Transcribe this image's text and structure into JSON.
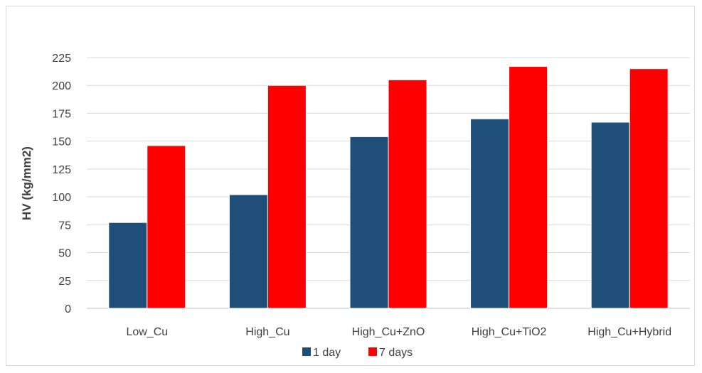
{
  "chart_data": {
    "type": "bar",
    "categories": [
      "Low_Cu",
      "High_Cu",
      "High_Cu+ZnO",
      "High_Cu+TiO2",
      "High_Cu+Hybrid"
    ],
    "series": [
      {
        "name": "1 day",
        "color": "#1f4e79",
        "values": [
          77,
          102,
          154,
          170,
          167
        ]
      },
      {
        "name": "7 days",
        "color": "#ff0000",
        "values": [
          146,
          200,
          205,
          217,
          215
        ]
      }
    ],
    "ylabel": "HV (kg/mm2)",
    "xlabel": "",
    "ylim": [
      0,
      225
    ],
    "yticks": [
      0,
      25,
      50,
      75,
      100,
      125,
      150,
      175,
      200,
      225
    ],
    "grid": true,
    "legend_position": "bottom"
  }
}
